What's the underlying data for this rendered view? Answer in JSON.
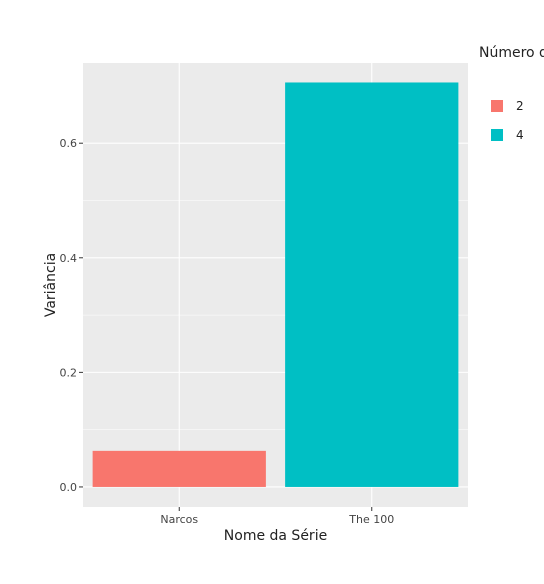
{
  "chart_data": {
    "type": "bar",
    "categories": [
      "Narcos",
      "The 100"
    ],
    "values": [
      0.063,
      0.706
    ],
    "bar_colors": [
      "#F8766D",
      "#00BFC4"
    ],
    "xlabel": "Nome da Série",
    "ylabel": "Variância",
    "ylim": [
      -0.035,
      0.74
    ],
    "yticks": [
      0.0,
      0.2,
      0.4,
      0.6
    ],
    "ytick_labels": [
      "0.0",
      "0.2",
      "0.4",
      "0.6"
    ],
    "grid": true,
    "panel_background": "#EBEBEB",
    "legend": {
      "title": "Número d",
      "placement": "right",
      "entries": [
        {
          "label": "2",
          "color": "#F8766D"
        },
        {
          "label": "4",
          "color": "#00BFC4"
        }
      ]
    }
  }
}
